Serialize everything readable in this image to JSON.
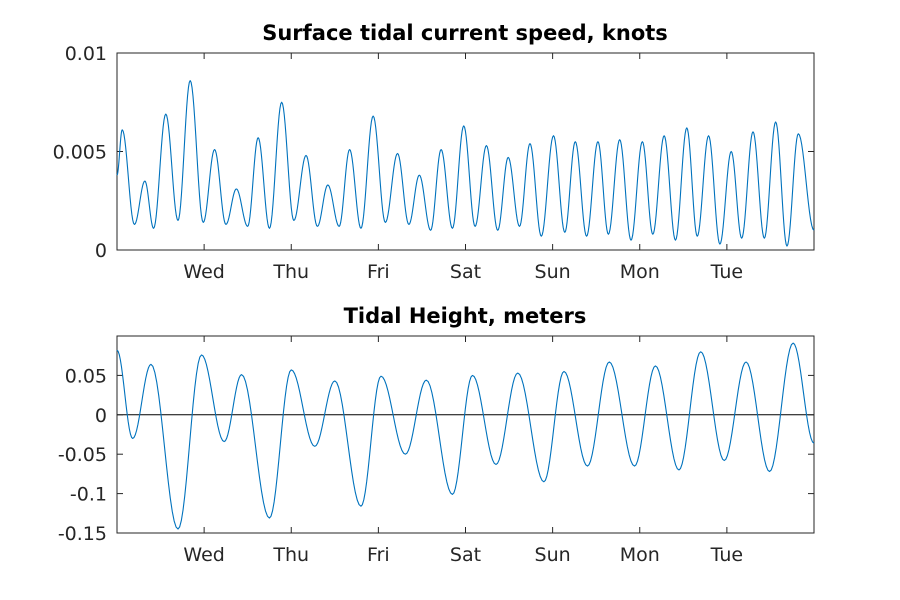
{
  "chart_data": [
    {
      "type": "line",
      "title": "Surface tidal current speed, knots",
      "xlabel": "",
      "ylabel": "",
      "x_ticks": [
        "Wed",
        "Thu",
        "Fri",
        "Sat",
        "Sun",
        "Mon",
        "Tue"
      ],
      "x_range_days": [
        0,
        8
      ],
      "x_tick_positions_days": [
        1,
        2,
        3,
        4,
        5,
        6,
        7
      ],
      "ylim": [
        0,
        0.01
      ],
      "y_ticks": [
        "0",
        "0.005",
        "0.01"
      ],
      "y_tick_values": [
        0,
        0.005,
        0.01
      ],
      "grid": false,
      "series": [
        {
          "color": "#0072BD",
          "peaks": [
            {
              "x": 0.06,
              "y": 0.0061
            },
            {
              "x": 0.32,
              "y": 0.0035
            },
            {
              "x": 0.56,
              "y": 0.0069
            },
            {
              "x": 0.84,
              "y": 0.0086
            },
            {
              "x": 1.12,
              "y": 0.0051
            },
            {
              "x": 1.37,
              "y": 0.0031
            },
            {
              "x": 1.62,
              "y": 0.0057
            },
            {
              "x": 1.89,
              "y": 0.0075
            },
            {
              "x": 2.17,
              "y": 0.0048
            },
            {
              "x": 2.42,
              "y": 0.0033
            },
            {
              "x": 2.67,
              "y": 0.0051
            },
            {
              "x": 2.94,
              "y": 0.0068
            },
            {
              "x": 3.22,
              "y": 0.0049
            },
            {
              "x": 3.47,
              "y": 0.0038
            },
            {
              "x": 3.72,
              "y": 0.0051
            },
            {
              "x": 3.98,
              "y": 0.0063
            },
            {
              "x": 4.24,
              "y": 0.0053
            },
            {
              "x": 4.49,
              "y": 0.0047
            },
            {
              "x": 4.74,
              "y": 0.0054
            },
            {
              "x": 5.01,
              "y": 0.0058
            },
            {
              "x": 5.26,
              "y": 0.0055
            },
            {
              "x": 5.52,
              "y": 0.0055
            },
            {
              "x": 5.77,
              "y": 0.0056
            },
            {
              "x": 6.03,
              "y": 0.0055
            },
            {
              "x": 6.28,
              "y": 0.0058
            },
            {
              "x": 6.54,
              "y": 0.0062
            },
            {
              "x": 6.79,
              "y": 0.0058
            },
            {
              "x": 7.05,
              "y": 0.005
            },
            {
              "x": 7.3,
              "y": 0.006
            },
            {
              "x": 7.56,
              "y": 0.0065
            },
            {
              "x": 7.82,
              "y": 0.0059
            }
          ],
          "troughs": [
            {
              "x": 0.0,
              "y": 0.0038
            },
            {
              "x": 0.2,
              "y": 0.0013
            },
            {
              "x": 0.42,
              "y": 0.0011
            },
            {
              "x": 0.7,
              "y": 0.0015
            },
            {
              "x": 0.99,
              "y": 0.0014
            },
            {
              "x": 1.25,
              "y": 0.0013
            },
            {
              "x": 1.5,
              "y": 0.0012
            },
            {
              "x": 1.75,
              "y": 0.0011
            },
            {
              "x": 2.03,
              "y": 0.0015
            },
            {
              "x": 2.3,
              "y": 0.0012
            },
            {
              "x": 2.55,
              "y": 0.0012
            },
            {
              "x": 2.8,
              "y": 0.0011
            },
            {
              "x": 3.08,
              "y": 0.0014
            },
            {
              "x": 3.35,
              "y": 0.0013
            },
            {
              "x": 3.6,
              "y": 0.001
            },
            {
              "x": 3.85,
              "y": 0.0011
            },
            {
              "x": 4.11,
              "y": 0.0012
            },
            {
              "x": 4.37,
              "y": 0.001
            },
            {
              "x": 4.62,
              "y": 0.0012
            },
            {
              "x": 4.87,
              "y": 0.0007
            },
            {
              "x": 5.14,
              "y": 0.0009
            },
            {
              "x": 5.39,
              "y": 0.0007
            },
            {
              "x": 5.64,
              "y": 0.0008
            },
            {
              "x": 5.9,
              "y": 0.0005
            },
            {
              "x": 6.15,
              "y": 0.0008
            },
            {
              "x": 6.41,
              "y": 0.0005
            },
            {
              "x": 6.66,
              "y": 0.0007
            },
            {
              "x": 6.92,
              "y": 0.0003
            },
            {
              "x": 7.17,
              "y": 0.0006
            },
            {
              "x": 7.43,
              "y": 0.0006
            },
            {
              "x": 7.69,
              "y": 0.0002
            },
            {
              "x": 8.0,
              "y": 0.001
            }
          ]
        }
      ]
    },
    {
      "type": "line",
      "title": "Tidal Height, meters",
      "xlabel": "",
      "ylabel": "",
      "x_ticks": [
        "Wed",
        "Thu",
        "Fri",
        "Sat",
        "Sun",
        "Mon",
        "Tue"
      ],
      "x_range_days": [
        0,
        8
      ],
      "x_tick_positions_days": [
        1,
        2,
        3,
        4,
        5,
        6,
        7
      ],
      "ylim": [
        -0.15,
        0.1
      ],
      "y_ticks": [
        "0.05",
        "0",
        "-0.05",
        "-0.1",
        "-0.15"
      ],
      "y_tick_values": [
        0.05,
        0,
        -0.05,
        -0.1,
        -0.15
      ],
      "zero_line": true,
      "grid": false,
      "series": [
        {
          "color": "#0072BD",
          "extrema": [
            {
              "x": 0.0,
              "y": 0.082
            },
            {
              "x": 0.18,
              "y": -0.03
            },
            {
              "x": 0.39,
              "y": 0.064
            },
            {
              "x": 0.7,
              "y": -0.145
            },
            {
              "x": 0.97,
              "y": 0.076
            },
            {
              "x": 1.23,
              "y": -0.034
            },
            {
              "x": 1.43,
              "y": 0.051
            },
            {
              "x": 1.75,
              "y": -0.131
            },
            {
              "x": 2.0,
              "y": 0.057
            },
            {
              "x": 2.27,
              "y": -0.04
            },
            {
              "x": 2.5,
              "y": 0.043
            },
            {
              "x": 2.8,
              "y": -0.116
            },
            {
              "x": 3.03,
              "y": 0.049
            },
            {
              "x": 3.31,
              "y": -0.05
            },
            {
              "x": 3.55,
              "y": 0.044
            },
            {
              "x": 3.85,
              "y": -0.101
            },
            {
              "x": 4.08,
              "y": 0.05
            },
            {
              "x": 4.35,
              "y": -0.063
            },
            {
              "x": 4.6,
              "y": 0.053
            },
            {
              "x": 4.9,
              "y": -0.085
            },
            {
              "x": 5.13,
              "y": 0.055
            },
            {
              "x": 5.4,
              "y": -0.065
            },
            {
              "x": 5.65,
              "y": 0.067
            },
            {
              "x": 5.94,
              "y": -0.065
            },
            {
              "x": 6.18,
              "y": 0.062
            },
            {
              "x": 6.45,
              "y": -0.07
            },
            {
              "x": 6.7,
              "y": 0.08
            },
            {
              "x": 6.97,
              "y": -0.058
            },
            {
              "x": 7.22,
              "y": 0.067
            },
            {
              "x": 7.49,
              "y": -0.072
            },
            {
              "x": 7.76,
              "y": 0.091
            },
            {
              "x": 8.0,
              "y": -0.036
            }
          ]
        }
      ]
    }
  ]
}
